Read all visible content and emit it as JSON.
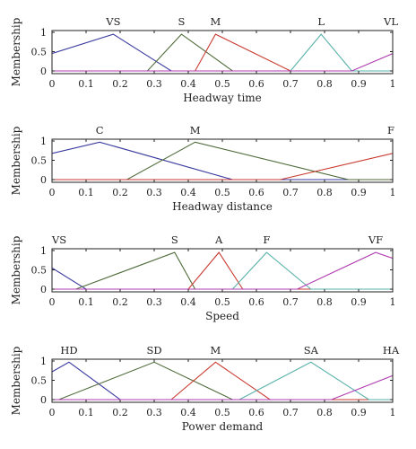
{
  "chart_data": [
    {
      "type": "line",
      "xlabel": "Headway time",
      "ylabel": "Membership",
      "xlim": [
        0,
        1
      ],
      "ylim": [
        0,
        1
      ],
      "xticks": [
        "0",
        "0.1",
        "0.2",
        "0.3",
        "0.4",
        "0.5",
        "0.6",
        "0.7",
        "0.8",
        "0.9",
        "1"
      ],
      "yticks": [
        "0",
        "0.5",
        "1"
      ],
      "sets": [
        {
          "label": "VS",
          "label_x": 0.18,
          "color": "#3a3aa0",
          "x": [
            0,
            0.18,
            0.35
          ],
          "y": [
            0.45,
            0.95,
            0
          ]
        },
        {
          "label": "S",
          "label_x": 0.38,
          "color": "#4f6b3a",
          "x": [
            0.28,
            0.38,
            0.53
          ],
          "y": [
            0,
            0.95,
            0
          ]
        },
        {
          "label": "M",
          "label_x": 0.48,
          "color": "#c83a30",
          "x": [
            0.42,
            0.48,
            0.7
          ],
          "y": [
            0,
            0.95,
            0
          ]
        },
        {
          "label": "L",
          "label_x": 0.79,
          "color": "#56b0a8",
          "x": [
            0.7,
            0.79,
            0.88
          ],
          "y": [
            0,
            0.95,
            0
          ]
        },
        {
          "label": "VL",
          "label_x": 1.0,
          "color": "#b03ab0",
          "x": [
            0.88,
            1.0
          ],
          "y": [
            0,
            0.45
          ]
        }
      ]
    },
    {
      "type": "line",
      "xlabel": "Headway distance",
      "ylabel": "Membership",
      "xlim": [
        0,
        1
      ],
      "ylim": [
        0,
        1
      ],
      "xticks": [
        "0",
        "0.1",
        "0.2",
        "0.3",
        "0.4",
        "0.5",
        "0.6",
        "0.7",
        "0.8",
        "0.9",
        "1"
      ],
      "yticks": [
        "0",
        "0.5",
        "1"
      ],
      "sets": [
        {
          "label": "C",
          "label_x": 0.14,
          "color": "#3a3aa0",
          "x": [
            0,
            0.14,
            0.53
          ],
          "y": [
            0.68,
            0.97,
            0
          ]
        },
        {
          "label": "M",
          "label_x": 0.42,
          "color": "#4f6b3a",
          "x": [
            0.22,
            0.42,
            0.87
          ],
          "y": [
            0,
            0.97,
            0
          ]
        },
        {
          "label": "F",
          "label_x": 1.0,
          "color": "#c83a30",
          "x": [
            0.67,
            1.0
          ],
          "y": [
            0,
            0.68
          ]
        }
      ]
    },
    {
      "type": "line",
      "xlabel": "Speed",
      "ylabel": "Membership",
      "xlim": [
        0,
        1
      ],
      "ylim": [
        0,
        1
      ],
      "xticks": [
        "0",
        "0.1",
        "0.2",
        "0.3",
        "0.4",
        "0.5",
        "0.6",
        "0.7",
        "0.8",
        "0.9",
        "1"
      ],
      "yticks": [
        "0",
        "0.5",
        "1"
      ],
      "sets": [
        {
          "label": "VS",
          "label_x": 0.0,
          "color": "#3a3aa0",
          "x": [
            0,
            0.1
          ],
          "y": [
            0.55,
            0
          ]
        },
        {
          "label": "S",
          "label_x": 0.36,
          "color": "#4f6b3a",
          "x": [
            0.07,
            0.36,
            0.42
          ],
          "y": [
            0,
            0.95,
            0
          ]
        },
        {
          "label": "A",
          "label_x": 0.49,
          "color": "#c83a30",
          "x": [
            0.4,
            0.49,
            0.56
          ],
          "y": [
            0,
            0.95,
            0
          ]
        },
        {
          "label": "F",
          "label_x": 0.63,
          "color": "#56b0a8",
          "x": [
            0.53,
            0.63,
            0.76
          ],
          "y": [
            0,
            0.95,
            0
          ]
        },
        {
          "label": "VF",
          "label_x": 0.95,
          "color": "#b03ab0",
          "x": [
            0.72,
            0.95,
            1.0
          ],
          "y": [
            0,
            0.95,
            0.8
          ]
        }
      ]
    },
    {
      "type": "line",
      "xlabel": "Power demand",
      "ylabel": "Membership",
      "xlim": [
        0,
        1
      ],
      "ylim": [
        0,
        1
      ],
      "xticks": [
        "0",
        "0.1",
        "0.2",
        "0.3",
        "0.4",
        "0.5",
        "0.6",
        "0.7",
        "0.8",
        "0.9",
        "1"
      ],
      "yticks": [
        "0",
        "0.5",
        "1"
      ],
      "sets": [
        {
          "label": "HD",
          "label_x": 0.05,
          "color": "#3a3aa0",
          "x": [
            0,
            0.05,
            0.2
          ],
          "y": [
            0.72,
            0.97,
            0
          ]
        },
        {
          "label": "SD",
          "label_x": 0.3,
          "color": "#4f6b3a",
          "x": [
            0.02,
            0.3,
            0.53
          ],
          "y": [
            0,
            0.97,
            0
          ]
        },
        {
          "label": "M",
          "label_x": 0.48,
          "color": "#c83a30",
          "x": [
            0.35,
            0.48,
            0.64
          ],
          "y": [
            0,
            0.97,
            0
          ]
        },
        {
          "label": "SA",
          "label_x": 0.76,
          "color": "#56b0a8",
          "x": [
            0.55,
            0.76,
            0.93
          ],
          "y": [
            0,
            0.97,
            0
          ]
        },
        {
          "label": "HA",
          "label_x": 1.0,
          "color": "#b03ab0",
          "x": [
            0.82,
            1.0
          ],
          "y": [
            0,
            0.62
          ]
        }
      ]
    }
  ]
}
